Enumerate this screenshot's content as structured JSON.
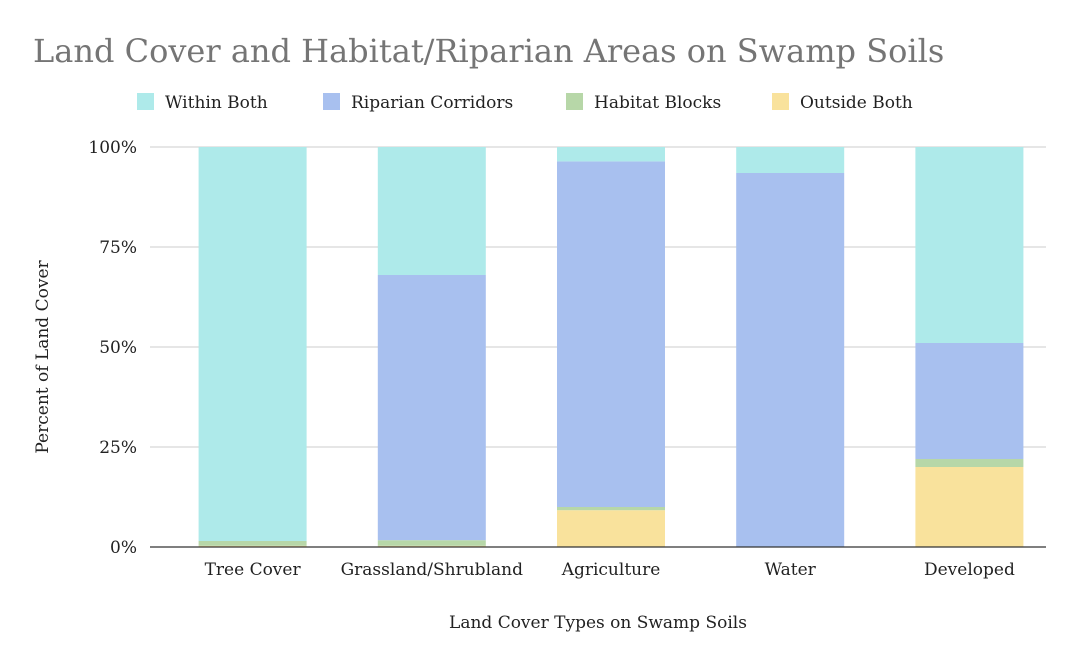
{
  "chart_data": {
    "type": "bar",
    "stacked": true,
    "percent_stacked": true,
    "title": "Land Cover and Habitat/Riparian Areas on Swamp Soils",
    "xlabel": "Land Cover Types on Swamp Soils",
    "ylabel": "Percent of Land Cover",
    "categories": [
      "Tree Cover",
      "Grassland/Shrubland",
      "Agriculture",
      "Water",
      "Developed"
    ],
    "y_ticks": [
      "0%",
      "25%",
      "50%",
      "75%",
      "100%"
    ],
    "ylim": [
      0,
      100
    ],
    "grid": true,
    "legend_position": "top",
    "series": [
      {
        "name": "Outside Both",
        "color": "#f9e29c",
        "values": [
          0.3,
          0.3,
          9.2,
          0.0,
          20.0
        ]
      },
      {
        "name": "Habitat Blocks",
        "color": "#b7d7a8",
        "values": [
          1.2,
          1.4,
          0.8,
          0.0,
          2.0
        ]
      },
      {
        "name": "Riparian Corridors",
        "color": "#a8c0ef",
        "values": [
          0.0,
          66.3,
          86.4,
          93.5,
          29.0
        ]
      },
      {
        "name": "Within Both",
        "color": "#aeeaea",
        "values": [
          98.5,
          32.0,
          3.6,
          6.5,
          49.0
        ]
      }
    ],
    "legend_order": [
      "Within Both",
      "Riparian Corridors",
      "Habitat Blocks",
      "Outside Both"
    ]
  }
}
